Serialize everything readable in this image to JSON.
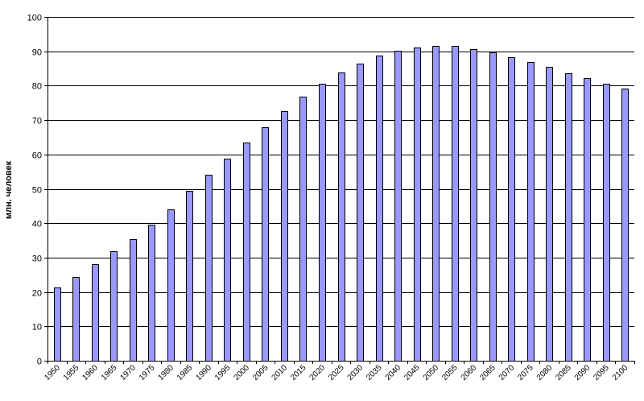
{
  "chart_data": {
    "type": "bar",
    "ylabel": "млн. человек",
    "xlabel": "",
    "title": "",
    "ylim": [
      0,
      100
    ],
    "y_ticks": [
      "0",
      "10",
      "20",
      "30",
      "40",
      "50",
      "60",
      "70",
      "80",
      "90",
      "100"
    ],
    "grid": true,
    "legend": "none",
    "bar_color": "#9999ff",
    "categories": [
      "1950",
      "1955",
      "1960",
      "1965",
      "1970",
      "1975",
      "1980",
      "1985",
      "1990",
      "1995",
      "2000",
      "2005",
      "2010",
      "2015",
      "2020",
      "2025",
      "2030",
      "2035",
      "2040",
      "2045",
      "2050",
      "2055",
      "2060",
      "2065",
      "2070",
      "2075",
      "2080",
      "2085",
      "2090",
      "2095",
      "2100"
    ],
    "values": [
      21.2,
      24.4,
      28.2,
      31.8,
      35.3,
      39.6,
      44.0,
      49.3,
      54.0,
      58.7,
      63.5,
      68.0,
      72.7,
      76.9,
      80.6,
      83.8,
      86.5,
      88.7,
      90.2,
      91.1,
      91.6,
      91.5,
      90.6,
      89.7,
      88.3,
      86.9,
      85.4,
      83.6,
      82.1,
      80.6,
      79.1
    ]
  }
}
